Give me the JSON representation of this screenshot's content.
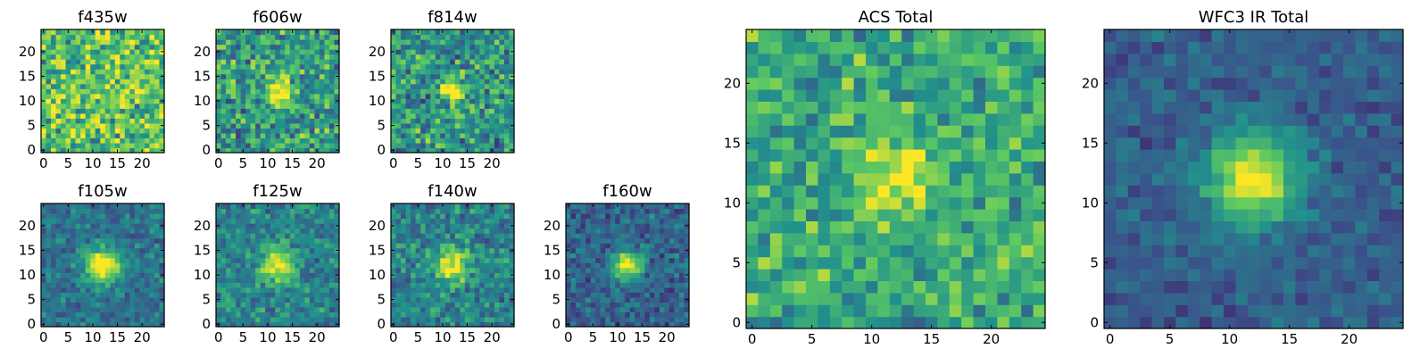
{
  "figure": {
    "description_type": "heatmap grid",
    "colormap": "viridis",
    "colormap_stops": [
      "#440154",
      "#3b528b",
      "#21918c",
      "#5ec962",
      "#fde725"
    ]
  },
  "chart_data": [
    {
      "type": "heatmap",
      "title": "f435w",
      "grid_size": 25,
      "source_x": 12,
      "source_y": 12,
      "sigma": 1.8,
      "peak": 0.0,
      "background": 0.72,
      "noise": 0.42,
      "seed": 11,
      "xlim": [
        0,
        24
      ],
      "ylim": [
        0,
        24
      ],
      "xticks": [
        0,
        5,
        10,
        15,
        20
      ],
      "yticks": [
        0,
        5,
        10,
        15,
        20
      ],
      "xticklabels": [
        "0",
        "5",
        "10",
        "15",
        "20"
      ],
      "yticklabels": [
        "0",
        "5",
        "10",
        "15",
        "20"
      ]
    },
    {
      "type": "heatmap",
      "title": "f606w",
      "grid_size": 25,
      "source_x": 12,
      "source_y": 12,
      "sigma": 1.8,
      "peak": 0.55,
      "background": 0.55,
      "noise": 0.38,
      "seed": 23,
      "xlim": [
        0,
        24
      ],
      "ylim": [
        0,
        24
      ],
      "xticks": [
        0,
        5,
        10,
        15,
        20
      ],
      "yticks": [
        0,
        5,
        10,
        15,
        20
      ],
      "xticklabels": [
        "0",
        "5",
        "10",
        "15",
        "20"
      ],
      "yticklabels": [
        "0",
        "5",
        "10",
        "15",
        "20"
      ]
    },
    {
      "type": "heatmap",
      "title": "f814w",
      "grid_size": 25,
      "source_x": 12,
      "source_y": 12,
      "sigma": 1.8,
      "peak": 0.55,
      "background": 0.52,
      "noise": 0.38,
      "seed": 37,
      "xlim": [
        0,
        24
      ],
      "ylim": [
        0,
        24
      ],
      "xticks": [
        0,
        5,
        10,
        15,
        20
      ],
      "yticks": [
        0,
        5,
        10,
        15,
        20
      ],
      "xticklabels": [
        "0",
        "5",
        "10",
        "15",
        "20"
      ],
      "yticklabels": [
        "0",
        "5",
        "10",
        "15",
        "20"
      ]
    },
    {
      "type": "heatmap",
      "title": "f105w",
      "grid_size": 25,
      "source_x": 12,
      "source_y": 12,
      "sigma": 2.4,
      "peak": 0.72,
      "background": 0.38,
      "noise": 0.2,
      "seed": 41,
      "xlim": [
        0,
        24
      ],
      "ylim": [
        0,
        24
      ],
      "xticks": [
        0,
        5,
        10,
        15,
        20
      ],
      "yticks": [
        0,
        5,
        10,
        15,
        20
      ],
      "xticklabels": [
        "0",
        "5",
        "10",
        "15",
        "20"
      ],
      "yticklabels": [
        "0",
        "5",
        "10",
        "15",
        "20"
      ]
    },
    {
      "type": "heatmap",
      "title": "f125w",
      "grid_size": 25,
      "source_x": 12,
      "source_y": 12,
      "sigma": 2.4,
      "peak": 0.55,
      "background": 0.45,
      "noise": 0.25,
      "seed": 53,
      "xlim": [
        0,
        24
      ],
      "ylim": [
        0,
        24
      ],
      "xticks": [
        0,
        5,
        10,
        15,
        20
      ],
      "yticks": [
        0,
        5,
        10,
        15,
        20
      ],
      "xticklabels": [
        "0",
        "5",
        "10",
        "15",
        "20"
      ],
      "yticklabels": [
        "0",
        "5",
        "10",
        "15",
        "20"
      ]
    },
    {
      "type": "heatmap",
      "title": "f140w",
      "grid_size": 25,
      "source_x": 12,
      "source_y": 12,
      "sigma": 2.4,
      "peak": 0.55,
      "background": 0.45,
      "noise": 0.25,
      "seed": 67,
      "xlim": [
        0,
        24
      ],
      "ylim": [
        0,
        24
      ],
      "xticks": [
        0,
        5,
        10,
        15,
        20
      ],
      "yticks": [
        0,
        5,
        10,
        15,
        20
      ],
      "xticklabels": [
        "0",
        "5",
        "10",
        "15",
        "20"
      ],
      "yticklabels": [
        "0",
        "5",
        "10",
        "15",
        "20"
      ]
    },
    {
      "type": "heatmap",
      "title": "f160w",
      "grid_size": 25,
      "source_x": 12,
      "source_y": 12,
      "sigma": 2.0,
      "peak": 0.72,
      "background": 0.32,
      "noise": 0.22,
      "seed": 79,
      "xlim": [
        0,
        24
      ],
      "ylim": [
        0,
        24
      ],
      "xticks": [
        0,
        5,
        10,
        15,
        20
      ],
      "yticks": [
        0,
        5,
        10,
        15,
        20
      ],
      "xticklabels": [
        "0",
        "5",
        "10",
        "15",
        "20"
      ],
      "yticklabels": [
        "0",
        "5",
        "10",
        "15",
        "20"
      ]
    },
    {
      "type": "heatmap",
      "title": "ACS Total",
      "grid_size": 25,
      "source_x": 12,
      "source_y": 12,
      "sigma": 2.2,
      "peak": 0.4,
      "background": 0.6,
      "noise": 0.3,
      "seed": 97,
      "xlim": [
        0,
        24
      ],
      "ylim": [
        0,
        24
      ],
      "xticks": [
        0,
        5,
        10,
        15,
        20
      ],
      "yticks": [
        0,
        5,
        10,
        15,
        20
      ],
      "xticklabels": [
        "0",
        "5",
        "10",
        "15",
        "20"
      ],
      "yticklabels": [
        "0",
        "5",
        "10",
        "15",
        "20"
      ]
    },
    {
      "type": "heatmap",
      "title": "WFC3 IR Total",
      "grid_size": 25,
      "source_x": 12,
      "source_y": 12,
      "sigma": 2.6,
      "peak": 0.72,
      "background": 0.3,
      "noise": 0.15,
      "seed": 113,
      "xlim": [
        0,
        24
      ],
      "ylim": [
        0,
        24
      ],
      "xticks": [
        0,
        5,
        10,
        15,
        20
      ],
      "yticks": [
        0,
        5,
        10,
        15,
        20
      ],
      "xticklabels": [
        "0",
        "5",
        "10",
        "15",
        "20"
      ],
      "yticklabels": [
        "0",
        "5",
        "10",
        "15",
        "20"
      ]
    }
  ]
}
